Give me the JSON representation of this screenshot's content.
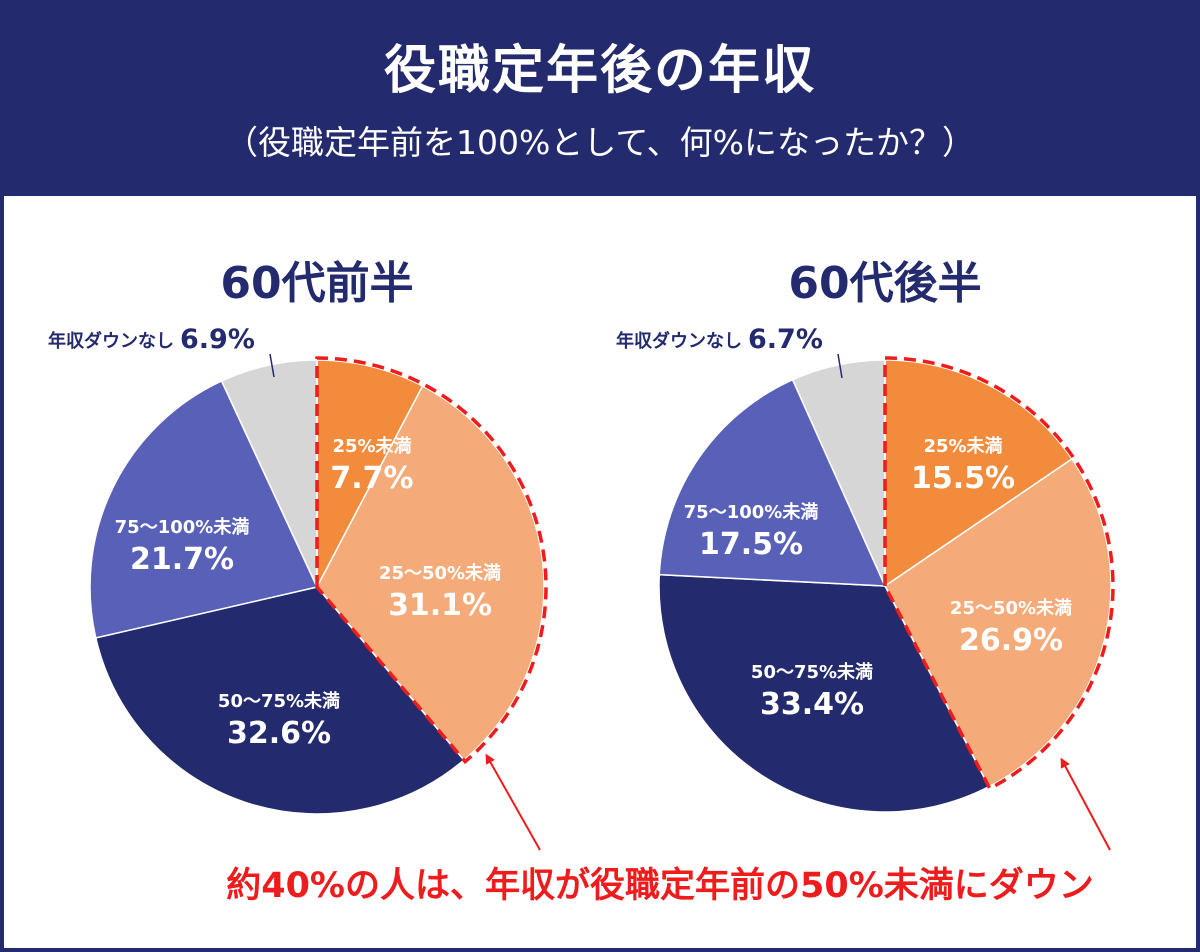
{
  "header": {
    "title": "役職定年後の年収",
    "subtitle": "（役職定年前を100%として、何%になったか？）"
  },
  "callout": "約40%の人は、年収が役職定年前の50%未満にダウン",
  "colors": {
    "header_bg": "#232a6e",
    "under25": "#f28b3c",
    "25to50": "#f4aa79",
    "50to75": "#232a6e",
    "75to100": "#5860b8",
    "no_down": "#d6d6d6",
    "highlight": "#ee1c1c"
  },
  "chart_data": [
    {
      "type": "pie",
      "title": "60代前半",
      "slices": [
        {
          "label": "25%未満",
          "value": 7.7,
          "value_label": "7.7%",
          "color": "#f28b3c"
        },
        {
          "label": "25～50%未満",
          "value": 31.1,
          "value_label": "31.1%",
          "color": "#f4aa79"
        },
        {
          "label": "50～75%未満",
          "value": 32.6,
          "value_label": "32.6%",
          "color": "#232a6e"
        },
        {
          "label": "75～100%未満",
          "value": 21.7,
          "value_label": "21.7%",
          "color": "#5860b8"
        },
        {
          "label": "年収ダウンなし",
          "value": 6.9,
          "value_label": "6.9%",
          "color": "#d6d6d6"
        }
      ],
      "highlighted_slices": [
        "25%未満",
        "25～50%未満"
      ]
    },
    {
      "type": "pie",
      "title": "60代後半",
      "slices": [
        {
          "label": "25%未満",
          "value": 15.5,
          "value_label": "15.5%",
          "color": "#f28b3c"
        },
        {
          "label": "25～50%未満",
          "value": 26.9,
          "value_label": "26.9%",
          "color": "#f4aa79"
        },
        {
          "label": "50～75%未満",
          "value": 33.4,
          "value_label": "33.4%",
          "color": "#232a6e"
        },
        {
          "label": "75～100%未満",
          "value": 17.5,
          "value_label": "17.5%",
          "color": "#5860b8"
        },
        {
          "label": "年収ダウンなし",
          "value": 6.7,
          "value_label": "6.7%",
          "color": "#d6d6d6"
        }
      ],
      "highlighted_slices": [
        "25%未満",
        "25～50%未満"
      ]
    }
  ]
}
